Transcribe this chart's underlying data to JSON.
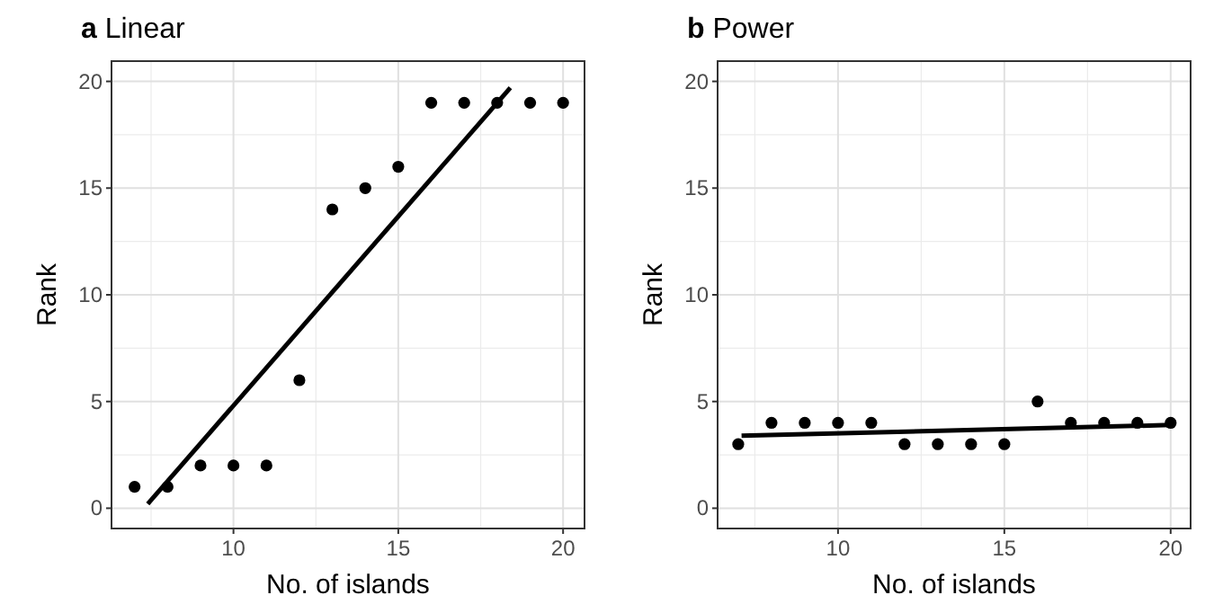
{
  "chart_data": [
    {
      "type": "scatter",
      "title": "a Linear",
      "xlabel": "No. of islands",
      "ylabel": "Rank",
      "xlim": [
        6.3,
        20.65
      ],
      "ylim": [
        -0.95,
        20.95
      ],
      "xticks": [
        10,
        15,
        20
      ],
      "yticks": [
        0,
        5,
        10,
        15,
        20
      ],
      "grid": true,
      "series": [
        {
          "color": "#000000",
          "marker": "circle",
          "x": [
            7,
            8,
            9,
            10,
            11,
            12,
            13,
            14,
            15,
            16,
            17,
            18,
            19,
            20
          ],
          "values": [
            1,
            1,
            2,
            2,
            2,
            6,
            14,
            15,
            16,
            19,
            19,
            19,
            19,
            19
          ]
        },
        {
          "type": "line",
          "marker": "none",
          "color": "#000000",
          "x": [
            7.4,
            18.4
          ],
          "values": [
            0.2,
            19.7
          ]
        }
      ]
    },
    {
      "type": "scatter",
      "title": "b Power",
      "xlabel": "No. of islands",
      "ylabel": "Rank",
      "xlim": [
        6.38,
        20.6
      ],
      "ylim": [
        -0.95,
        20.95
      ],
      "xticks": [
        10,
        15,
        20
      ],
      "yticks": [
        0,
        5,
        10,
        15,
        20
      ],
      "grid": true,
      "series": [
        {
          "color": "#000000",
          "marker": "circle",
          "x": [
            7,
            8,
            9,
            10,
            11,
            12,
            13,
            14,
            15,
            16,
            17,
            18,
            19,
            20
          ],
          "values": [
            3,
            4,
            4,
            4,
            4,
            3,
            3,
            3,
            3,
            5,
            4,
            4,
            4,
            4
          ]
        },
        {
          "type": "line",
          "marker": "none",
          "color": "#000000",
          "x": [
            7.1,
            20
          ],
          "values": [
            3.4,
            3.9
          ]
        }
      ]
    }
  ]
}
